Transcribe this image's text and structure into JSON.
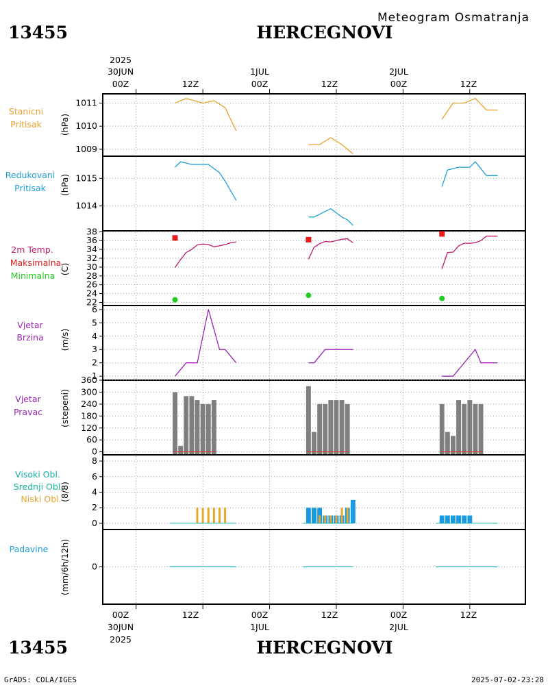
{
  "header": {
    "station_id": "13455",
    "station_name": "HERCEGNOVI",
    "subtitle": "Meteogram Osmatranja"
  },
  "footer": {
    "station_id": "13455",
    "station_name": "HERCEGNOVI",
    "credit": "GrADS: COLA/IGES",
    "timestamp": "2025-07-02-23:28"
  },
  "time_axis": {
    "year": "2025",
    "ticks": [
      "00Z",
      "12Z",
      "00Z",
      "12Z",
      "00Z",
      "12Z"
    ],
    "dates": [
      "30JUN",
      "1JUL",
      "2JUL"
    ],
    "range_hours": [
      -6,
      70
    ]
  },
  "colors": {
    "orange": "#e8a22a",
    "blue": "#1fa0d6",
    "magenta": "#c0186a",
    "red": "#e81a1a",
    "green": "#22cc22",
    "purple": "#9b26b6",
    "gray": "#7f7f7f",
    "teal": "#16b0a8",
    "bar_blue": "#1a9be0",
    "bar_orange": "#e8a72a"
  },
  "chart_data": [
    {
      "type": "line",
      "panel": "stanicni_pritisak",
      "labels": [
        "Stanicni",
        "Pritisak"
      ],
      "ylabel": "(hPa)",
      "ylim": [
        1008.7,
        1011.4
      ],
      "yticks": [
        "1009",
        "1010",
        "1011"
      ],
      "segments": [
        {
          "x": [
            7,
            9,
            12,
            14,
            16,
            18
          ],
          "y": [
            1011.0,
            1011.2,
            1011.0,
            1011.1,
            1010.8,
            1009.8
          ]
        },
        {
          "x": [
            31,
            33,
            35,
            37,
            39
          ],
          "y": [
            1009.2,
            1009.2,
            1009.5,
            1009.2,
            1008.8
          ]
        },
        {
          "x": [
            55,
            57,
            59,
            61,
            63,
            65
          ],
          "y": [
            1010.3,
            1011.0,
            1011.0,
            1011.2,
            1010.7,
            1010.7
          ]
        }
      ]
    },
    {
      "type": "line",
      "panel": "redukovani_pritisak",
      "labels": [
        "Redukovani",
        "Pritisak"
      ],
      "ylabel": "(hPa)",
      "ylim": [
        1013.1,
        1015.8
      ],
      "yticks": [
        "1014",
        "1015"
      ],
      "segments": [
        {
          "x": [
            7,
            8,
            10,
            12,
            13,
            15,
            16,
            18
          ],
          "y": [
            1015.4,
            1015.6,
            1015.5,
            1015.5,
            1015.5,
            1015.2,
            1014.9,
            1014.2
          ]
        },
        {
          "x": [
            31,
            32,
            34,
            35,
            37,
            38,
            39
          ],
          "y": [
            1013.6,
            1013.6,
            1013.8,
            1013.9,
            1013.6,
            1013.5,
            1013.3
          ]
        },
        {
          "x": [
            55,
            56,
            58,
            60,
            61,
            63,
            64,
            65
          ],
          "y": [
            1014.7,
            1015.3,
            1015.4,
            1015.4,
            1015.6,
            1015.1,
            1015.1,
            1015.1
          ]
        }
      ]
    },
    {
      "type": "line",
      "panel": "temperatura",
      "labels": [
        "2m Temp.",
        "Maksimalna",
        "Minimalna"
      ],
      "ylabel": "(C)",
      "ylim": [
        21.3,
        38.2
      ],
      "yticks": [
        "22",
        "24",
        "26",
        "28",
        "30",
        "32",
        "34",
        "36",
        "38"
      ],
      "segments": [
        {
          "x": [
            7,
            8,
            9,
            10,
            11,
            12,
            13,
            14,
            15,
            16,
            17,
            18
          ],
          "y": [
            29.9,
            31.7,
            33.3,
            34.0,
            35.0,
            35.2,
            35.1,
            34.6,
            34.8,
            35.1,
            35.5,
            35.7
          ]
        },
        {
          "x": [
            31,
            32,
            33,
            34,
            35,
            36,
            37,
            38,
            39
          ],
          "y": [
            31.8,
            34.5,
            35.3,
            35.8,
            35.7,
            36.0,
            36.3,
            36.4,
            35.5
          ]
        },
        {
          "x": [
            55,
            56,
            57,
            58,
            59,
            60,
            61,
            62,
            63,
            64,
            65
          ],
          "y": [
            29.6,
            33.3,
            33.4,
            34.8,
            35.4,
            35.4,
            35.5,
            36.0,
            37.0,
            37.0,
            37.0
          ]
        }
      ],
      "maxima": [
        {
          "x": 7,
          "y": 36.6
        },
        {
          "x": 31,
          "y": 36.2
        },
        {
          "x": 55,
          "y": 37.5
        }
      ],
      "minima": [
        {
          "x": 7,
          "y": 22.6
        },
        {
          "x": 31,
          "y": 23.6
        },
        {
          "x": 55,
          "y": 22.9
        }
      ]
    },
    {
      "type": "line",
      "panel": "vjetar_brzina",
      "labels": [
        "Vjetar",
        "Brzina"
      ],
      "ylabel": "(m/s)",
      "ylim": [
        0.7,
        6.3
      ],
      "yticks": [
        "1",
        "2",
        "3",
        "4",
        "5",
        "6"
      ],
      "segments": [
        {
          "x": [
            7,
            9,
            11,
            13,
            15,
            16,
            18
          ],
          "y": [
            1,
            2,
            2,
            6,
            3,
            3,
            2
          ]
        },
        {
          "x": [
            31,
            32,
            34,
            36,
            38,
            39
          ],
          "y": [
            2,
            2,
            3,
            3,
            3,
            3
          ]
        },
        {
          "x": [
            55,
            57,
            59,
            61,
            62,
            64,
            65
          ],
          "y": [
            1,
            1,
            2,
            3,
            2,
            2,
            2
          ]
        }
      ]
    },
    {
      "type": "bar",
      "panel": "vjetar_pravac",
      "labels": [
        "Vjetar",
        "Pravac"
      ],
      "ylabel": "(stepeni)",
      "ylim": [
        -15,
        360
      ],
      "yticks": [
        "0",
        "60",
        "120",
        "180",
        "240",
        "300",
        "360"
      ],
      "x": [
        7,
        8,
        9,
        10,
        11,
        12,
        13,
        14,
        31,
        32,
        33,
        34,
        35,
        36,
        37,
        38,
        55,
        56,
        57,
        58,
        59,
        60,
        61,
        62
      ],
      "values": [
        300,
        30,
        280,
        280,
        260,
        240,
        240,
        260,
        330,
        100,
        240,
        240,
        260,
        260,
        260,
        240,
        240,
        100,
        80,
        260,
        240,
        260,
        240,
        240
      ]
    },
    {
      "type": "bar",
      "panel": "oblaci",
      "labels": [
        "Visoki Obl.",
        "Srednji Obl.",
        "Niski Obl."
      ],
      "ylabel": "(8/8)",
      "ylim": [
        -0.8,
        8.8
      ],
      "yticks": [
        "0",
        "2",
        "4",
        "6",
        "8"
      ],
      "series": [
        {
          "name": "Visoki Obl.",
          "x": [
            31,
            32,
            33,
            34,
            35,
            36,
            37,
            38,
            39,
            55,
            56,
            57,
            58,
            59,
            60
          ],
          "values": [
            2,
            2,
            2,
            1,
            1,
            1,
            1,
            2,
            3,
            1,
            1,
            1,
            1,
            1,
            1
          ]
        },
        {
          "name": "Niski Obl.",
          "x": [
            11,
            12,
            13,
            14,
            15,
            16,
            33,
            34,
            35,
            36,
            37,
            38
          ],
          "values": [
            2,
            2,
            2,
            2,
            2,
            2,
            1,
            1,
            1,
            1,
            2,
            2
          ]
        }
      ]
    },
    {
      "type": "line",
      "panel": "padavine",
      "labels": [
        "Padavine"
      ],
      "ylabel": "(mm/6h/12h)",
      "ylim": [
        -5,
        5
      ],
      "yticks": [
        "0"
      ],
      "segments": [
        {
          "x": [
            6,
            18
          ],
          "y": [
            0,
            0
          ]
        },
        {
          "x": [
            30,
            39
          ],
          "y": [
            0,
            0
          ]
        },
        {
          "x": [
            54,
            65
          ],
          "y": [
            0,
            0
          ]
        }
      ]
    }
  ]
}
